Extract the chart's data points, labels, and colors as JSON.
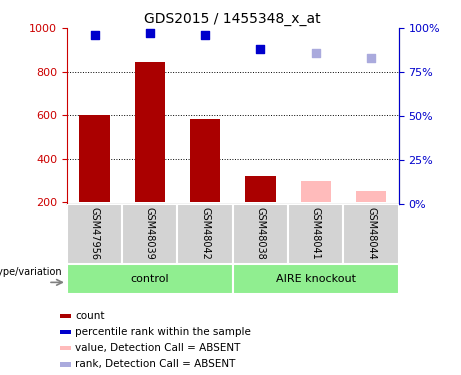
{
  "title": "GDS2015 / 1455348_x_at",
  "samples": [
    "GSM47956",
    "GSM48039",
    "GSM48042",
    "GSM48038",
    "GSM48041",
    "GSM48044"
  ],
  "bar_values": [
    600,
    843,
    582,
    320,
    298,
    252
  ],
  "bar_colors": [
    "#aa0000",
    "#aa0000",
    "#aa0000",
    "#aa0000",
    "#ffbbbb",
    "#ffbbbb"
  ],
  "dot_values": [
    96,
    97,
    96,
    88,
    86,
    83
  ],
  "dot_colors": [
    "#0000cc",
    "#0000cc",
    "#0000cc",
    "#0000cc",
    "#aaaadd",
    "#aaaadd"
  ],
  "ylim_left": [
    190,
    1000
  ],
  "ylim_right": [
    0,
    100
  ],
  "yticks_left": [
    200,
    400,
    600,
    800,
    1000
  ],
  "yticks_right": [
    0,
    25,
    50,
    75,
    100
  ],
  "grid_lines": [
    800,
    600,
    400
  ],
  "left_axis_color": "#cc0000",
  "right_axis_color": "#0000cc",
  "group_color": "#90EE90",
  "sample_bg_color": "#d3d3d3",
  "legend_items": [
    {
      "color": "#aa0000",
      "label": "count"
    },
    {
      "color": "#0000cc",
      "label": "percentile rank within the sample"
    },
    {
      "color": "#ffbbbb",
      "label": "value, Detection Call = ABSENT"
    },
    {
      "color": "#aaaadd",
      "label": "rank, Detection Call = ABSENT"
    }
  ],
  "bar_width": 0.55,
  "dot_size": 40,
  "group_defs": [
    {
      "label": "control",
      "start": 0,
      "end": 3
    },
    {
      "label": "AIRE knockout",
      "start": 3,
      "end": 6
    }
  ]
}
